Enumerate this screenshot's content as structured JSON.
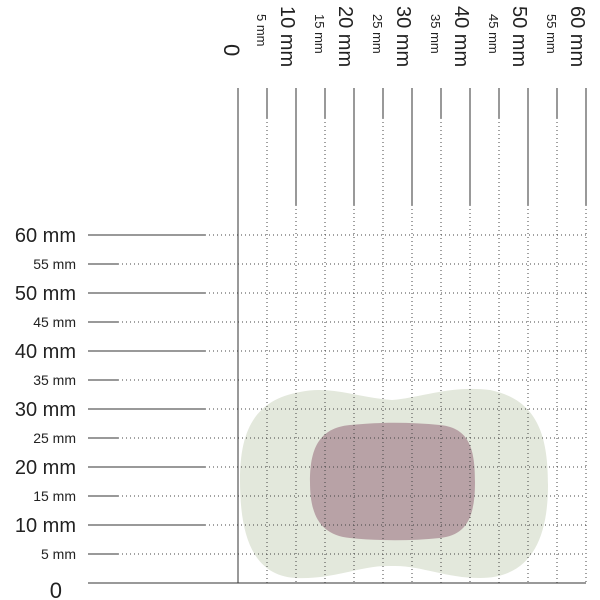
{
  "x_axis": {
    "labels": [
      "0",
      "5 mm",
      "10 mm",
      "15 mm",
      "20 mm",
      "25 mm",
      "30 mm",
      "35 mm",
      "40 mm",
      "45 mm",
      "50 mm",
      "55 mm",
      "60 mm"
    ]
  },
  "y_axis": {
    "labels": [
      "0",
      "5 mm",
      "10 mm",
      "15 mm",
      "20 mm",
      "25 mm",
      "30 mm",
      "35 mm",
      "40 mm",
      "45 mm",
      "50 mm",
      "55 mm",
      "60 mm"
    ]
  }
}
